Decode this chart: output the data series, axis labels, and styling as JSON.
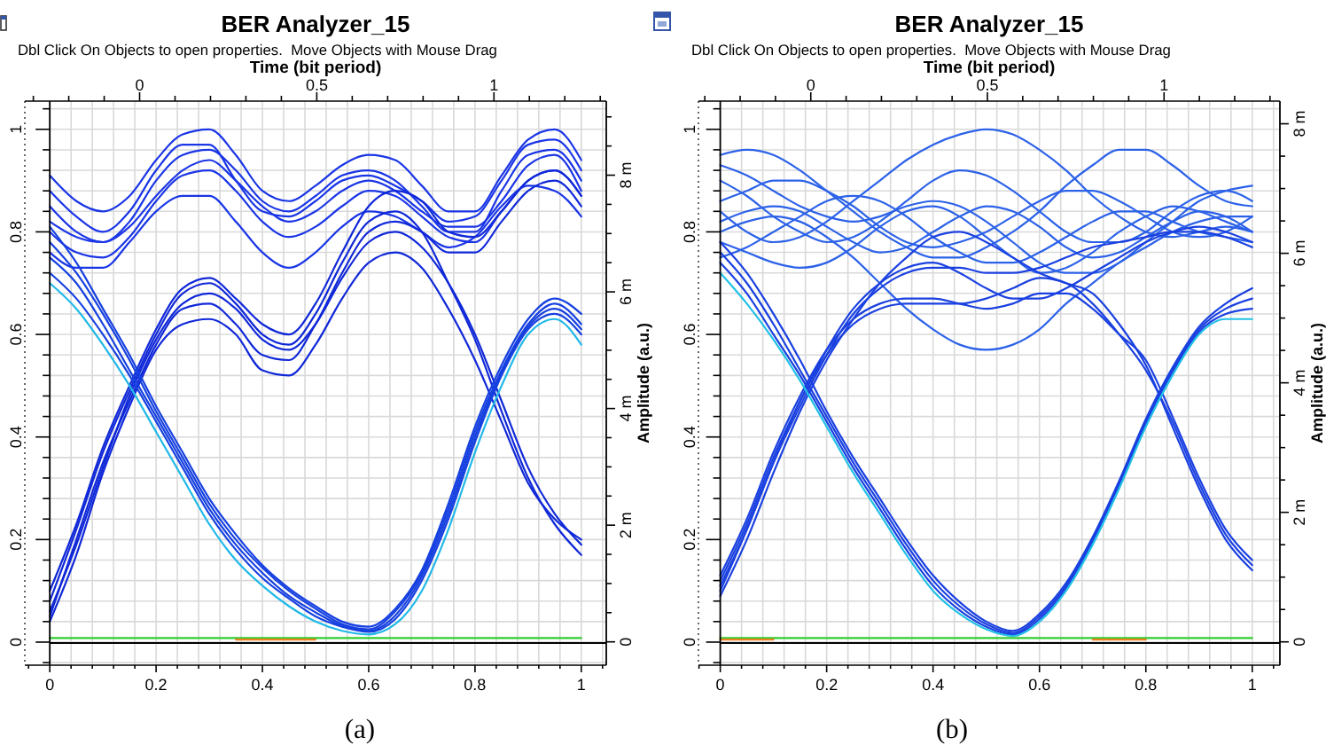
{
  "chart_data": [
    {
      "type": "line",
      "title": "BER Analyzer_15",
      "subtitle": "Dbl Click On Objects to open properties.  Move Objects with Mouse Drag",
      "x2label": "Time (bit period)",
      "y2label": "Amplitude (a.u.)",
      "annotations": [
        "(a)"
      ],
      "grid": true,
      "x": [
        0,
        0.05,
        0.1,
        0.15,
        0.2,
        0.25,
        0.3,
        0.35,
        0.4,
        0.45,
        0.5,
        0.55,
        0.6,
        0.65,
        0.7,
        0.75,
        0.8,
        0.85,
        0.9,
        0.95,
        1
      ],
      "series": [
        {
          "color": "#1a35e6",
          "values": [
            0.91,
            0.86,
            0.84,
            0.87,
            0.94,
            0.99,
            1.0,
            0.95,
            0.88,
            0.86,
            0.89,
            0.93,
            0.95,
            0.94,
            0.89,
            0.84,
            0.84,
            0.91,
            0.98,
            1.0,
            0.94
          ]
        },
        {
          "color": "#1a35e6",
          "values": [
            0.88,
            0.83,
            0.8,
            0.84,
            0.92,
            0.97,
            0.97,
            0.9,
            0.84,
            0.83,
            0.86,
            0.9,
            0.91,
            0.89,
            0.86,
            0.82,
            0.83,
            0.9,
            0.97,
            0.98,
            0.92
          ]
        },
        {
          "color": "#1a35e6",
          "values": [
            0.85,
            0.8,
            0.78,
            0.82,
            0.9,
            0.95,
            0.96,
            0.92,
            0.86,
            0.84,
            0.87,
            0.91,
            0.92,
            0.9,
            0.85,
            0.8,
            0.8,
            0.88,
            0.95,
            0.96,
            0.9
          ]
        },
        {
          "color": "#1a35e6",
          "values": [
            0.82,
            0.79,
            0.78,
            0.81,
            0.87,
            0.92,
            0.94,
            0.9,
            0.85,
            0.82,
            0.84,
            0.88,
            0.9,
            0.88,
            0.84,
            0.81,
            0.81,
            0.86,
            0.93,
            0.95,
            0.88
          ]
        },
        {
          "color": "#1a35e6",
          "values": [
            0.8,
            0.76,
            0.75,
            0.79,
            0.86,
            0.91,
            0.92,
            0.88,
            0.82,
            0.79,
            0.81,
            0.85,
            0.88,
            0.87,
            0.83,
            0.79,
            0.78,
            0.84,
            0.9,
            0.92,
            0.87
          ]
        },
        {
          "color": "#1a35e6",
          "values": [
            0.76,
            0.73,
            0.73,
            0.78,
            0.84,
            0.87,
            0.87,
            0.82,
            0.76,
            0.73,
            0.76,
            0.81,
            0.84,
            0.83,
            0.8,
            0.77,
            0.79,
            0.85,
            0.89,
            0.88,
            0.83
          ]
        },
        {
          "color": "#1028d8",
          "values": [
            0.05,
            0.2,
            0.35,
            0.47,
            0.58,
            0.65,
            0.66,
            0.62,
            0.56,
            0.55,
            0.62,
            0.72,
            0.8,
            0.82,
            0.8,
            0.76,
            0.76,
            0.82,
            0.88,
            0.9,
            0.85
          ]
        },
        {
          "color": "#1028d8",
          "values": [
            0.1,
            0.23,
            0.38,
            0.5,
            0.61,
            0.69,
            0.71,
            0.67,
            0.62,
            0.6,
            0.66,
            0.76,
            0.85,
            0.88,
            0.86,
            0.8,
            0.79,
            0.84,
            0.9,
            0.92,
            0.87
          ]
        },
        {
          "color": "#1028d8",
          "values": [
            0.08,
            0.22,
            0.37,
            0.49,
            0.6,
            0.68,
            0.7,
            0.66,
            0.6,
            0.58,
            0.64,
            0.74,
            0.82,
            0.84,
            0.8,
            0.7,
            0.59,
            0.45,
            0.32,
            0.23,
            0.17
          ]
        },
        {
          "color": "#1028d8",
          "values": [
            0.06,
            0.19,
            0.34,
            0.48,
            0.59,
            0.66,
            0.68,
            0.65,
            0.59,
            0.57,
            0.62,
            0.71,
            0.78,
            0.8,
            0.77,
            0.7,
            0.6,
            0.47,
            0.34,
            0.25,
            0.19
          ]
        },
        {
          "color": "#1028d8",
          "values": [
            0.04,
            0.17,
            0.33,
            0.46,
            0.57,
            0.62,
            0.63,
            0.6,
            0.53,
            0.52,
            0.58,
            0.67,
            0.74,
            0.76,
            0.73,
            0.65,
            0.55,
            0.43,
            0.31,
            0.24,
            0.2
          ]
        },
        {
          "color": "#1640e0",
          "values": [
            0.81,
            0.74,
            0.65,
            0.56,
            0.46,
            0.37,
            0.28,
            0.21,
            0.15,
            0.105,
            0.07,
            0.04,
            0.03,
            0.065,
            0.14,
            0.27,
            0.42,
            0.54,
            0.63,
            0.67,
            0.64
          ]
        },
        {
          "color": "#1640e0",
          "values": [
            0.78,
            0.72,
            0.64,
            0.55,
            0.45,
            0.36,
            0.27,
            0.2,
            0.145,
            0.1,
            0.065,
            0.035,
            0.025,
            0.06,
            0.135,
            0.26,
            0.41,
            0.53,
            0.62,
            0.66,
            0.62
          ]
        },
        {
          "color": "#1640e0",
          "values": [
            0.75,
            0.7,
            0.62,
            0.53,
            0.44,
            0.35,
            0.26,
            0.19,
            0.135,
            0.09,
            0.058,
            0.032,
            0.022,
            0.052,
            0.128,
            0.25,
            0.4,
            0.525,
            0.615,
            0.65,
            0.61
          ]
        },
        {
          "color": "#1640e0",
          "values": [
            0.72,
            0.67,
            0.6,
            0.52,
            0.43,
            0.34,
            0.25,
            0.18,
            0.125,
            0.085,
            0.05,
            0.03,
            0.02,
            0.045,
            0.12,
            0.24,
            0.39,
            0.52,
            0.61,
            0.64,
            0.6
          ]
        },
        {
          "color": "#20b8e8",
          "values": [
            0.7,
            0.65,
            0.58,
            0.5,
            0.41,
            0.32,
            0.23,
            0.16,
            0.11,
            0.07,
            0.04,
            0.022,
            0.015,
            0.035,
            0.1,
            0.22,
            0.37,
            0.5,
            0.6,
            0.63,
            0.58
          ]
        },
        {
          "color": "#33cc33",
          "values": [
            0.008,
            0.008,
            0.008,
            0.008,
            0.008,
            0.008,
            0.008,
            0.008,
            0.008,
            0.008,
            0.008,
            0.008,
            0.008,
            0.008,
            0.008,
            0.008,
            0.008,
            0.008,
            0.008,
            0.008,
            0.008
          ]
        },
        {
          "color": "#f08020",
          "values": [
            null,
            null,
            null,
            null,
            null,
            null,
            null,
            0.005,
            0.005,
            0.005,
            0.005,
            null,
            null,
            null,
            null,
            null,
            null,
            null,
            null,
            null,
            null
          ]
        }
      ],
      "ref_lines": [
        {
          "axis": "y",
          "value": 0,
          "color": "#000000"
        }
      ],
      "xlim": [
        -0.047,
        1.047
      ],
      "ylim": [
        -0.045,
        1.055
      ],
      "xticks": [
        {
          "value": -0.04,
          "label": null
        },
        0,
        {
          "value": 0.04,
          "label": null
        },
        {
          "value": 0.08,
          "label": null
        },
        {
          "value": 0.12,
          "label": null
        },
        {
          "value": 0.16,
          "label": null
        },
        0.2,
        {
          "value": 0.24,
          "label": null
        },
        {
          "value": 0.28,
          "label": null
        },
        {
          "value": 0.32,
          "label": null
        },
        {
          "value": 0.36,
          "label": null
        },
        0.4,
        {
          "value": 0.44,
          "label": null
        },
        {
          "value": 0.48,
          "label": null
        },
        {
          "value": 0.52,
          "label": null
        },
        {
          "value": 0.56,
          "label": null
        },
        0.6,
        {
          "value": 0.64,
          "label": null
        },
        {
          "value": 0.68,
          "label": null
        },
        {
          "value": 0.72,
          "label": null
        },
        {
          "value": 0.76,
          "label": null
        },
        0.8,
        {
          "value": 0.84,
          "label": null
        },
        {
          "value": 0.88,
          "label": null
        },
        {
          "value": 0.92,
          "label": null
        },
        {
          "value": 0.96,
          "label": null
        },
        1,
        {
          "value": 1.04,
          "label": null
        }
      ],
      "yticks": [
        {
          "value": -0.04,
          "label": null
        },
        0,
        {
          "value": 0.04,
          "label": null
        },
        {
          "value": 0.08,
          "label": null
        },
        {
          "value": 0.12,
          "label": null
        },
        {
          "value": 0.16,
          "label": null
        },
        0.2,
        {
          "value": 0.24,
          "label": null
        },
        {
          "value": 0.28,
          "label": null
        },
        {
          "value": 0.32,
          "label": null
        },
        {
          "value": 0.36,
          "label": null
        },
        0.4,
        {
          "value": 0.44,
          "label": null
        },
        {
          "value": 0.48,
          "label": null
        },
        {
          "value": 0.52,
          "label": null
        },
        {
          "value": 0.56,
          "label": null
        },
        0.6,
        {
          "value": 0.64,
          "label": null
        },
        {
          "value": 0.68,
          "label": null
        },
        {
          "value": 0.72,
          "label": null
        },
        {
          "value": 0.76,
          "label": null
        },
        0.8,
        {
          "value": 0.84,
          "label": null
        },
        {
          "value": 0.88,
          "label": null
        },
        {
          "value": 0.92,
          "label": null
        },
        {
          "value": 0.96,
          "label": null
        },
        1,
        {
          "value": 1.04,
          "label": null
        }
      ],
      "x2lim": [
        -0.324,
        1.317
      ],
      "x2ticks": [
        {
          "value": -0.3,
          "label": null
        },
        {
          "value": -0.2,
          "label": null
        },
        {
          "value": -0.1,
          "label": null
        },
        0,
        {
          "value": 0.1,
          "label": null
        },
        {
          "value": 0.2,
          "label": null
        },
        {
          "value": 0.3,
          "label": null
        },
        {
          "value": 0.4,
          "label": null
        },
        0.5,
        {
          "value": 0.6,
          "label": null
        },
        {
          "value": 0.7,
          "label": null
        },
        {
          "value": 0.8,
          "label": null
        },
        {
          "value": 0.9,
          "label": null
        },
        1,
        {
          "value": 1.1,
          "label": null
        },
        {
          "value": 1.2,
          "label": null
        },
        {
          "value": 1.3,
          "label": null
        }
      ],
      "y2lim": [
        -0.4,
        9.27
      ],
      "y2ticks": [
        0,
        {
          "value": 0.5,
          "label": null
        },
        {
          "value": 1,
          "label": null
        },
        {
          "value": 1.5,
          "label": null
        },
        {
          "value": 2,
          "label": "2 m"
        },
        {
          "value": 2.5,
          "label": null
        },
        {
          "value": 3,
          "label": null
        },
        {
          "value": 3.5,
          "label": null
        },
        {
          "value": 4,
          "label": "4 m"
        },
        {
          "value": 4.5,
          "label": null
        },
        {
          "value": 5,
          "label": null
        },
        {
          "value": 5.5,
          "label": null
        },
        {
          "value": 6,
          "label": "6 m"
        },
        {
          "value": 6.5,
          "label": null
        },
        {
          "value": 7,
          "label": null
        },
        {
          "value": 7.5,
          "label": null
        },
        {
          "value": 8,
          "label": "8 m"
        },
        {
          "value": 8.5,
          "label": null
        },
        {
          "value": 9,
          "label": null
        }
      ]
    },
    {
      "type": "line",
      "title": "BER Analyzer_15",
      "subtitle": "Dbl Click On Objects to open properties.  Move Objects with Mouse Drag",
      "x2label": "Time (bit period)",
      "y2label": "Amplitude (a.u.)",
      "annotations": [
        "(b)"
      ],
      "grid": true,
      "x": [
        0,
        0.05,
        0.1,
        0.15,
        0.2,
        0.25,
        0.3,
        0.35,
        0.4,
        0.45,
        0.5,
        0.55,
        0.6,
        0.65,
        0.7,
        0.75,
        0.8,
        0.85,
        0.9,
        0.95,
        1
      ],
      "series": [
        {
          "color": "#2c62e8",
          "values": [
            0.84,
            0.8,
            0.78,
            0.79,
            0.82,
            0.86,
            0.9,
            0.94,
            0.97,
            0.99,
            1.0,
            0.99,
            0.96,
            0.92,
            0.87,
            0.83,
            0.8,
            0.79,
            0.8,
            0.81,
            0.8
          ]
        },
        {
          "color": "#2c62e8",
          "values": [
            0.95,
            0.96,
            0.95,
            0.92,
            0.88,
            0.84,
            0.8,
            0.77,
            0.75,
            0.75,
            0.77,
            0.8,
            0.84,
            0.89,
            0.93,
            0.96,
            0.96,
            0.93,
            0.89,
            0.86,
            0.85
          ]
        },
        {
          "color": "#2c62e8",
          "values": [
            0.93,
            0.91,
            0.88,
            0.85,
            0.83,
            0.82,
            0.83,
            0.85,
            0.86,
            0.85,
            0.82,
            0.78,
            0.74,
            0.72,
            0.72,
            0.74,
            0.78,
            0.82,
            0.86,
            0.88,
            0.89
          ]
        },
        {
          "color": "#2c62e8",
          "values": [
            0.9,
            0.87,
            0.83,
            0.8,
            0.78,
            0.79,
            0.82,
            0.86,
            0.9,
            0.92,
            0.91,
            0.88,
            0.84,
            0.8,
            0.78,
            0.78,
            0.8,
            0.84,
            0.87,
            0.88,
            0.86
          ]
        },
        {
          "color": "#2c62e8",
          "values": [
            0.86,
            0.88,
            0.9,
            0.9,
            0.88,
            0.85,
            0.81,
            0.78,
            0.77,
            0.78,
            0.8,
            0.83,
            0.86,
            0.88,
            0.88,
            0.86,
            0.83,
            0.8,
            0.79,
            0.8,
            0.83
          ]
        },
        {
          "color": "#2c62e8",
          "values": [
            0.82,
            0.84,
            0.85,
            0.84,
            0.81,
            0.78,
            0.76,
            0.77,
            0.8,
            0.83,
            0.85,
            0.84,
            0.81,
            0.77,
            0.75,
            0.76,
            0.79,
            0.82,
            0.84,
            0.83,
            0.8
          ]
        },
        {
          "color": "#2c62e8",
          "values": [
            0.78,
            0.76,
            0.74,
            0.73,
            0.74,
            0.77,
            0.81,
            0.84,
            0.85,
            0.83,
            0.79,
            0.75,
            0.72,
            0.73,
            0.76,
            0.8,
            0.83,
            0.85,
            0.84,
            0.82,
            0.8
          ]
        },
        {
          "color": "#2c62e8",
          "values": [
            0.75,
            0.77,
            0.8,
            0.83,
            0.86,
            0.87,
            0.86,
            0.83,
            0.79,
            0.76,
            0.74,
            0.74,
            0.76,
            0.79,
            0.82,
            0.84,
            0.84,
            0.82,
            0.8,
            0.79,
            0.78
          ]
        },
        {
          "color": "#2c62e8",
          "values": [
            0.8,
            0.82,
            0.83,
            0.82,
            0.79,
            0.75,
            0.7,
            0.65,
            0.61,
            0.58,
            0.57,
            0.58,
            0.61,
            0.66,
            0.7,
            0.74,
            0.77,
            0.8,
            0.82,
            0.83,
            0.83
          ]
        },
        {
          "color": "#1a40e0",
          "values": [
            0.1,
            0.22,
            0.35,
            0.46,
            0.56,
            0.64,
            0.69,
            0.72,
            0.73,
            0.73,
            0.72,
            0.72,
            0.73,
            0.75,
            0.77,
            0.78,
            0.79,
            0.8,
            0.8,
            0.79,
            0.77
          ]
        },
        {
          "color": "#1a40e0",
          "values": [
            0.12,
            0.23,
            0.36,
            0.47,
            0.57,
            0.65,
            0.7,
            0.73,
            0.74,
            0.72,
            0.69,
            0.67,
            0.67,
            0.69,
            0.72,
            0.75,
            0.78,
            0.8,
            0.81,
            0.8,
            0.78
          ]
        },
        {
          "color": "#1a40e0",
          "values": [
            0.13,
            0.24,
            0.37,
            0.48,
            0.57,
            0.63,
            0.66,
            0.67,
            0.67,
            0.66,
            0.65,
            0.66,
            0.68,
            0.68,
            0.65,
            0.6,
            0.55,
            0.44,
            0.32,
            0.22,
            0.16
          ]
        },
        {
          "color": "#1a40e0",
          "values": [
            0.11,
            0.22,
            0.35,
            0.47,
            0.56,
            0.62,
            0.65,
            0.66,
            0.66,
            0.66,
            0.67,
            0.69,
            0.71,
            0.7,
            0.66,
            0.6,
            0.53,
            0.43,
            0.31,
            0.21,
            0.15
          ]
        },
        {
          "color": "#1a40e0",
          "values": [
            0.09,
            0.2,
            0.33,
            0.45,
            0.55,
            0.63,
            0.7,
            0.75,
            0.79,
            0.8,
            0.78,
            0.75,
            0.72,
            0.7,
            0.68,
            0.62,
            0.54,
            0.42,
            0.3,
            0.2,
            0.14
          ]
        },
        {
          "color": "#1a40e0",
          "values": [
            0.78,
            0.72,
            0.64,
            0.55,
            0.45,
            0.36,
            0.28,
            0.2,
            0.13,
            0.078,
            0.04,
            0.022,
            0.055,
            0.115,
            0.205,
            0.315,
            0.435,
            0.535,
            0.615,
            0.66,
            0.69
          ]
        },
        {
          "color": "#1a40e0",
          "values": [
            0.76,
            0.7,
            0.62,
            0.53,
            0.44,
            0.35,
            0.27,
            0.19,
            0.12,
            0.07,
            0.035,
            0.018,
            0.05,
            0.11,
            0.2,
            0.31,
            0.43,
            0.53,
            0.61,
            0.65,
            0.67
          ]
        },
        {
          "color": "#1a40e0",
          "values": [
            0.74,
            0.68,
            0.6,
            0.52,
            0.43,
            0.34,
            0.26,
            0.18,
            0.11,
            0.062,
            0.03,
            0.015,
            0.045,
            0.105,
            0.195,
            0.305,
            0.425,
            0.525,
            0.605,
            0.64,
            0.65
          ]
        },
        {
          "color": "#22c0e6",
          "values": [
            0.72,
            0.66,
            0.59,
            0.51,
            0.42,
            0.33,
            0.25,
            0.17,
            0.1,
            0.055,
            0.025,
            0.012,
            0.04,
            0.1,
            0.19,
            0.3,
            0.42,
            0.52,
            0.6,
            0.63,
            0.63
          ]
        },
        {
          "color": "#33cc33",
          "values": [
            0.008,
            0.008,
            0.008,
            0.008,
            0.008,
            0.008,
            0.008,
            0.008,
            0.008,
            0.008,
            0.008,
            0.008,
            0.008,
            0.008,
            0.008,
            0.008,
            0.008,
            0.008,
            0.008,
            0.008,
            0.008
          ]
        },
        {
          "color": "#f08020",
          "values": [
            0.005,
            0.005,
            0.005,
            null,
            null,
            null,
            null,
            null,
            null,
            null,
            null,
            null,
            null,
            null,
            0.005,
            0.005,
            0.005,
            null,
            null,
            null,
            null
          ]
        }
      ],
      "ref_lines": [
        {
          "axis": "y",
          "value": 0,
          "color": "#000000"
        }
      ],
      "xlim": [
        -0.041,
        1.052
      ],
      "ylim": [
        -0.045,
        1.055
      ],
      "xticks": [
        {
          "value": -0.04,
          "label": null
        },
        0,
        {
          "value": 0.04,
          "label": null
        },
        {
          "value": 0.08,
          "label": null
        },
        {
          "value": 0.12,
          "label": null
        },
        {
          "value": 0.16,
          "label": null
        },
        0.2,
        {
          "value": 0.24,
          "label": null
        },
        {
          "value": 0.28,
          "label": null
        },
        {
          "value": 0.32,
          "label": null
        },
        {
          "value": 0.36,
          "label": null
        },
        0.4,
        {
          "value": 0.44,
          "label": null
        },
        {
          "value": 0.48,
          "label": null
        },
        {
          "value": 0.52,
          "label": null
        },
        {
          "value": 0.56,
          "label": null
        },
        0.6,
        {
          "value": 0.64,
          "label": null
        },
        {
          "value": 0.68,
          "label": null
        },
        {
          "value": 0.72,
          "label": null
        },
        {
          "value": 0.76,
          "label": null
        },
        0.8,
        {
          "value": 0.84,
          "label": null
        },
        {
          "value": 0.88,
          "label": null
        },
        {
          "value": 0.92,
          "label": null
        },
        {
          "value": 0.96,
          "label": null
        },
        1,
        {
          "value": 1.04,
          "label": null
        }
      ],
      "yticks": [
        {
          "value": -0.04,
          "label": null
        },
        0,
        {
          "value": 0.04,
          "label": null
        },
        {
          "value": 0.08,
          "label": null
        },
        {
          "value": 0.12,
          "label": null
        },
        {
          "value": 0.16,
          "label": null
        },
        0.2,
        {
          "value": 0.24,
          "label": null
        },
        {
          "value": 0.28,
          "label": null
        },
        {
          "value": 0.32,
          "label": null
        },
        {
          "value": 0.36,
          "label": null
        },
        0.4,
        {
          "value": 0.44,
          "label": null
        },
        {
          "value": 0.48,
          "label": null
        },
        {
          "value": 0.52,
          "label": null
        },
        {
          "value": 0.56,
          "label": null
        },
        0.6,
        {
          "value": 0.64,
          "label": null
        },
        {
          "value": 0.68,
          "label": null
        },
        {
          "value": 0.72,
          "label": null
        },
        {
          "value": 0.76,
          "label": null
        },
        0.8,
        {
          "value": 0.84,
          "label": null
        },
        {
          "value": 0.88,
          "label": null
        },
        {
          "value": 0.92,
          "label": null
        },
        {
          "value": 0.96,
          "label": null
        },
        1,
        {
          "value": 1.04,
          "label": null
        }
      ],
      "x2lim": [
        -0.318,
        1.328
      ],
      "x2ticks": [
        {
          "value": -0.3,
          "label": null
        },
        {
          "value": -0.2,
          "label": null
        },
        {
          "value": -0.1,
          "label": null
        },
        0,
        {
          "value": 0.1,
          "label": null
        },
        {
          "value": 0.2,
          "label": null
        },
        {
          "value": 0.3,
          "label": null
        },
        {
          "value": 0.4,
          "label": null
        },
        0.5,
        {
          "value": 0.6,
          "label": null
        },
        {
          "value": 0.7,
          "label": null
        },
        {
          "value": 0.8,
          "label": null
        },
        {
          "value": 0.9,
          "label": null
        },
        1,
        {
          "value": 1.1,
          "label": null
        },
        {
          "value": 1.2,
          "label": null
        },
        {
          "value": 1.3,
          "label": null
        }
      ],
      "y2lim": [
        -0.36,
        8.35
      ],
      "y2ticks": [
        0,
        {
          "value": 0.5,
          "label": null
        },
        {
          "value": 1,
          "label": null
        },
        {
          "value": 1.5,
          "label": null
        },
        {
          "value": 2,
          "label": "2 m"
        },
        {
          "value": 2.5,
          "label": null
        },
        {
          "value": 3,
          "label": null
        },
        {
          "value": 3.5,
          "label": null
        },
        {
          "value": 4,
          "label": "4 m"
        },
        {
          "value": 4.5,
          "label": null
        },
        {
          "value": 5,
          "label": null
        },
        {
          "value": 5.5,
          "label": null
        },
        {
          "value": 6,
          "label": "6 m"
        },
        {
          "value": 6.5,
          "label": null
        },
        {
          "value": 7,
          "label": null
        },
        {
          "value": 7.5,
          "label": null
        },
        {
          "value": 8,
          "label": "8 m"
        }
      ]
    }
  ]
}
